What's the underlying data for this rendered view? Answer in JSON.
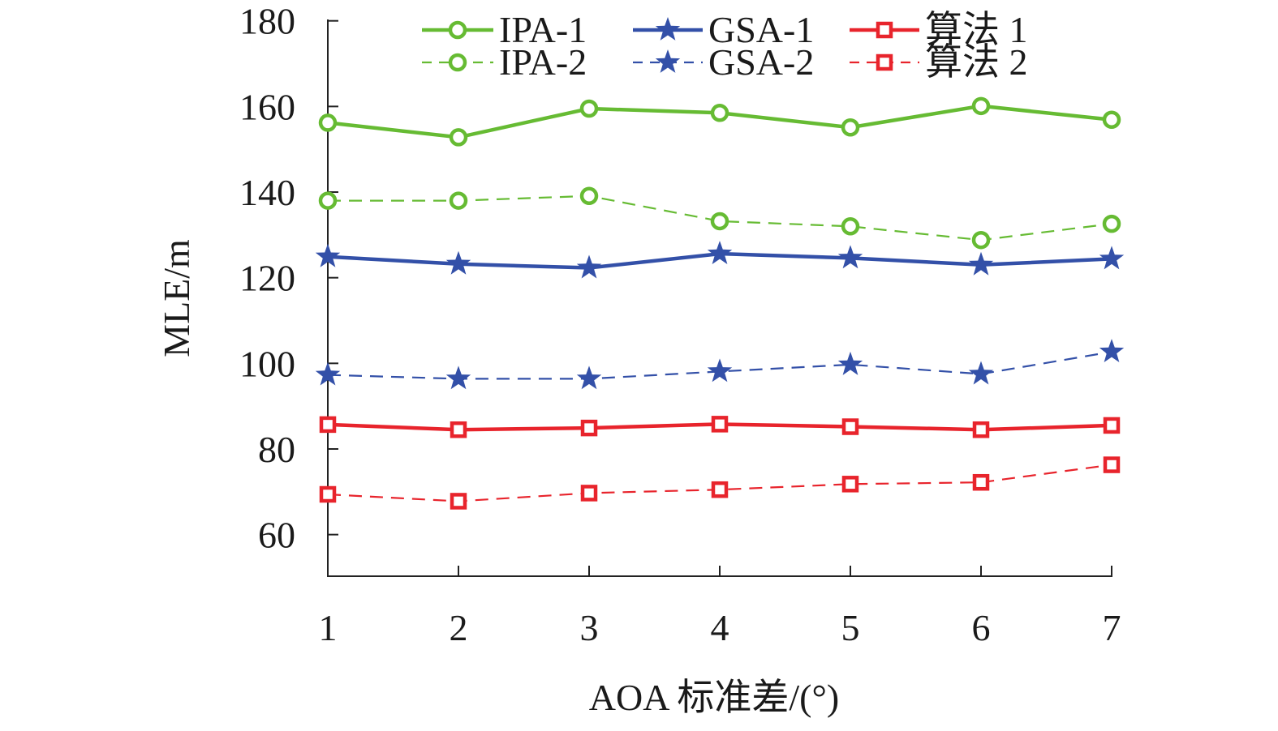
{
  "chart_data": {
    "type": "line",
    "title": "",
    "xlabel": "AOA 标准差/(°)",
    "ylabel": "MLE/m",
    "x": [
      1,
      2,
      3,
      4,
      5,
      6,
      7
    ],
    "x_tick_labels": [
      "1",
      "2",
      "3",
      "4",
      "5",
      "6",
      "7"
    ],
    "y_tick_values": [
      60,
      80,
      100,
      120,
      140,
      160,
      180
    ],
    "y_tick_labels": [
      "60",
      "80",
      "100",
      "120",
      "140",
      "160",
      "180"
    ],
    "xlim": [
      1,
      7
    ],
    "ylim": [
      50,
      180
    ],
    "grid": false,
    "legend_position": "top",
    "series": [
      {
        "name": "IPA-1",
        "color": "#66bb33",
        "dash": "solid",
        "marker": "circle",
        "values": [
          156.2,
          152.8,
          159.5,
          158.5,
          155.1,
          160.1,
          156.9
        ]
      },
      {
        "name": "GSA-1",
        "color": "#3350a8",
        "dash": "solid",
        "marker": "star",
        "values": [
          124.9,
          123.2,
          122.3,
          125.6,
          124.6,
          123.0,
          124.4
        ]
      },
      {
        "name": "算法 1",
        "color": "#e8242c",
        "dash": "solid",
        "marker": "square",
        "values": [
          85.7,
          84.5,
          84.9,
          85.8,
          85.2,
          84.5,
          85.5
        ]
      },
      {
        "name": "IPA-2",
        "color": "#66bb33",
        "dash": "dashed",
        "marker": "circle",
        "values": [
          138.0,
          138.0,
          139.1,
          133.2,
          132.0,
          128.8,
          132.6
        ]
      },
      {
        "name": "GSA-2",
        "color": "#3350a8",
        "dash": "dashed",
        "marker": "star",
        "values": [
          97.3,
          96.4,
          96.4,
          98.1,
          99.7,
          97.5,
          102.7
        ]
      },
      {
        "name": "算法 2",
        "color": "#e8242c",
        "dash": "dashed",
        "marker": "square",
        "values": [
          69.4,
          67.8,
          69.7,
          70.5,
          71.8,
          72.2,
          76.3
        ]
      }
    ]
  }
}
